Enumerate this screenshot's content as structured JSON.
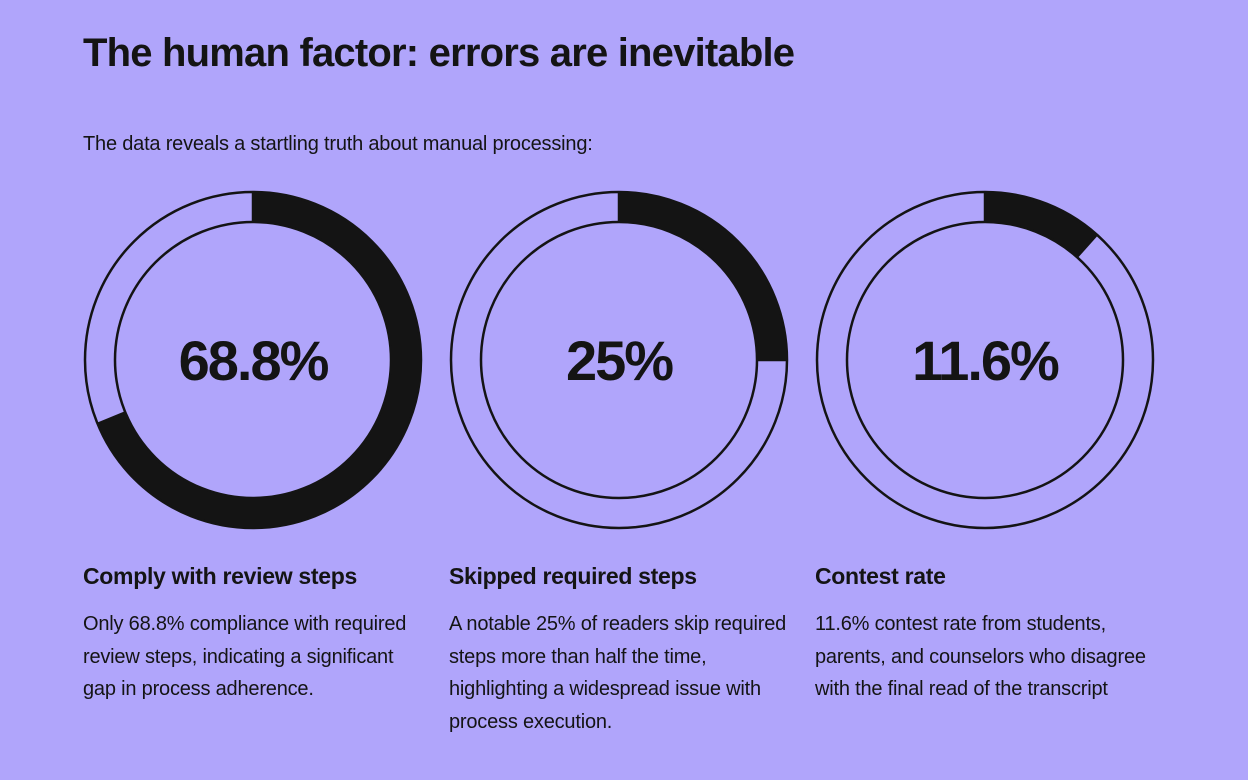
{
  "page": {
    "title": "The human factor: errors are inevitable",
    "intro": "The data reveals a startling truth about manual processing:",
    "colors": {
      "background": "#b0a5fb",
      "ring": "#141414"
    }
  },
  "chart_data": [
    {
      "type": "pie",
      "value": 68.8,
      "label": "68.8%",
      "title": "Comply with review steps",
      "description": "Only 68.8% compliance with required review steps, indicating a significant gap in process adherence."
    },
    {
      "type": "pie",
      "value": 25,
      "label": "25%",
      "title": "Skipped required steps",
      "description": "A notable 25% of readers skip required steps more than half the time, highlighting a widespread issue with process execution."
    },
    {
      "type": "pie",
      "value": 11.6,
      "label": "11.6%",
      "title": "Contest rate",
      "description": "11.6% contest rate from students, parents, and counselors who disagree with the final read of the transcript"
    }
  ]
}
